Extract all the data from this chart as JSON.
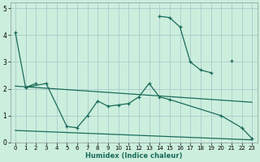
{
  "title": "",
  "xlabel": "Humidex (Indice chaleur)",
  "bg_color": "#cceedd",
  "grid_color": "#aacccc",
  "line_color": "#1a6b5a",
  "xlim": [
    -0.5,
    23.5
  ],
  "ylim": [
    0,
    5.2
  ],
  "xticks": [
    0,
    1,
    2,
    3,
    4,
    5,
    6,
    7,
    8,
    9,
    10,
    11,
    12,
    13,
    14,
    15,
    16,
    17,
    18,
    19,
    20,
    21,
    22,
    23
  ],
  "yticks": [
    0,
    1,
    2,
    3,
    4,
    5
  ],
  "series": [
    {
      "x": [
        0,
        1,
        2
      ],
      "y": [
        4.1,
        2.05,
        2.2
      ],
      "marker": true
    },
    {
      "x": [
        14,
        15,
        16,
        17,
        18,
        19
      ],
      "y": [
        4.7,
        4.65,
        4.3,
        3.0,
        2.7,
        2.6
      ],
      "marker": true
    },
    {
      "x": [
        21
      ],
      "y": [
        3.05
      ],
      "marker": true
    },
    {
      "x": [
        1,
        3,
        5,
        6,
        7,
        8,
        9,
        10,
        11,
        12,
        13,
        14,
        15,
        20,
        22,
        23
      ],
      "y": [
        2.05,
        2.2,
        0.6,
        0.55,
        1.0,
        1.55,
        1.35,
        1.4,
        1.45,
        1.7,
        2.2,
        1.7,
        1.6,
        1.0,
        0.55,
        0.15
      ],
      "marker": true
    },
    {
      "x": [
        0,
        23
      ],
      "y": [
        2.1,
        1.5
      ],
      "marker": false
    },
    {
      "x": [
        0,
        23
      ],
      "y": [
        0.45,
        0.1
      ],
      "marker": false
    }
  ]
}
